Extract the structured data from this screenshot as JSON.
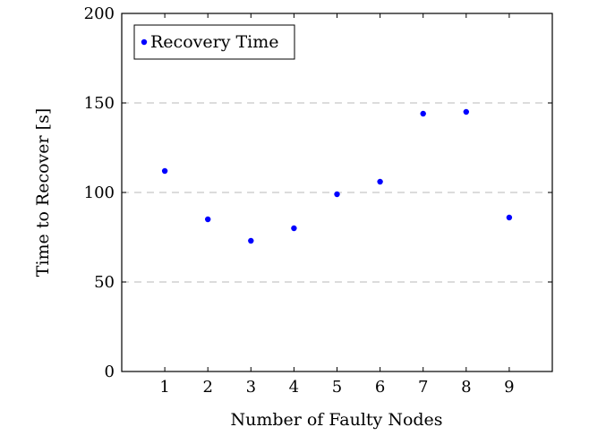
{
  "chart_data": {
    "type": "scatter",
    "title": "",
    "xlabel": "Number of Faulty Nodes",
    "ylabel": "Time to Recover [s]",
    "xlim": [
      0,
      10
    ],
    "ylim": [
      0,
      200
    ],
    "xticks": [
      1,
      2,
      3,
      4,
      5,
      6,
      7,
      8,
      9
    ],
    "yticks": [
      0,
      50,
      100,
      150,
      200
    ],
    "grid": "horizontal dashed at y ticks",
    "legend_position": "top-left",
    "series": [
      {
        "name": "Recovery Time",
        "color": "#0000ff",
        "marker": "filled-circle",
        "x": [
          1,
          2,
          3,
          4,
          5,
          6,
          7,
          8,
          9
        ],
        "y": [
          112,
          85,
          73,
          80,
          99,
          106,
          144,
          145,
          86
        ]
      }
    ]
  }
}
